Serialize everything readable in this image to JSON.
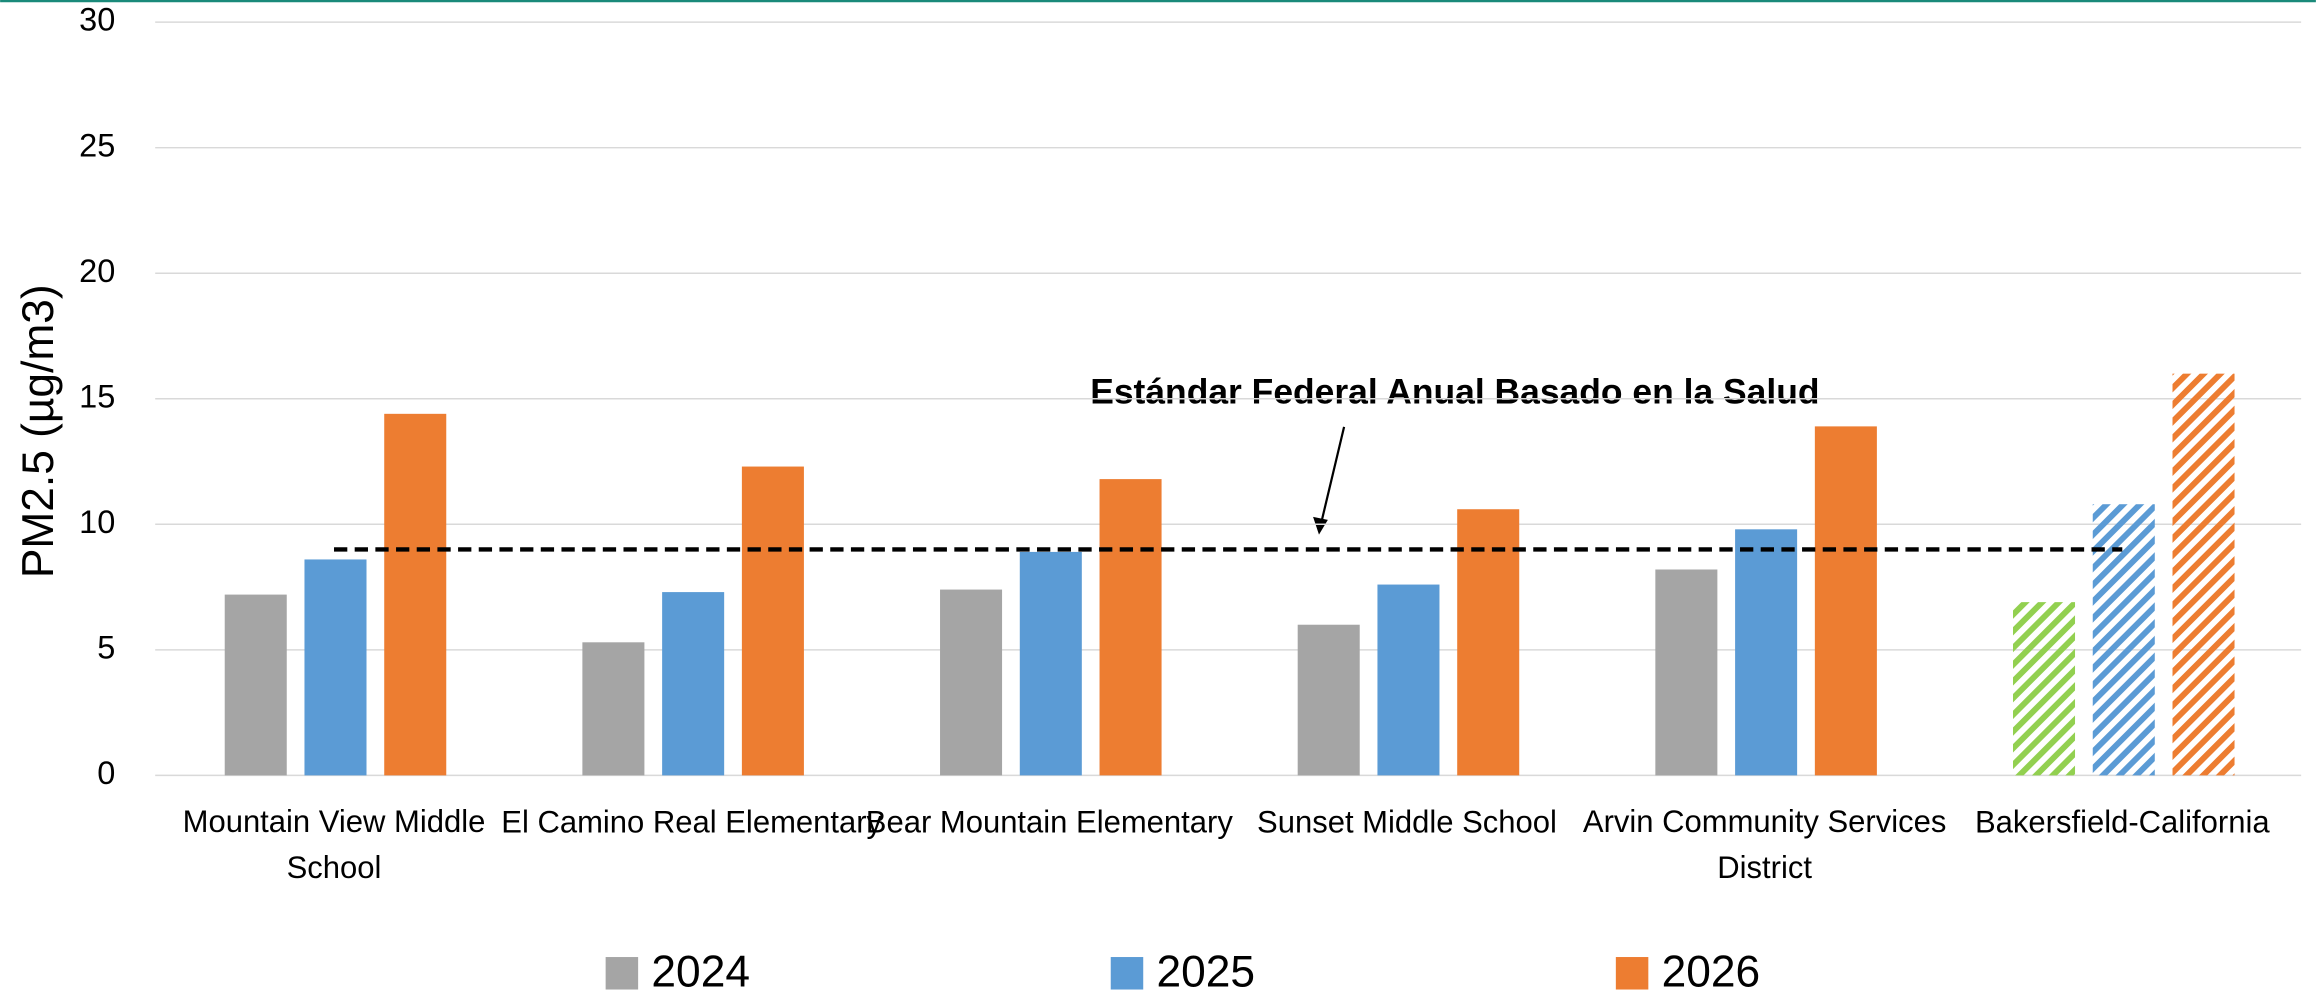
{
  "chart_data": {
    "type": "bar",
    "y_label": "PM2.5 (µg/m3)",
    "categories": [
      "Mountain View Middle School",
      "El Camino Real Elementary",
      "Bear Mountain Elementary",
      "Sunset Middle School",
      "Arvin Community Services District",
      "Bakersfield-California"
    ],
    "series": [
      {
        "name": "2024",
        "color": "#a5a5a5",
        "point_colors": [
          null,
          null,
          null,
          null,
          null,
          "#92d050"
        ],
        "values": [
          7.2,
          5.3,
          7.4,
          6.0,
          8.2,
          6.9
        ]
      },
      {
        "name": "2025",
        "color": "#5b9bd5",
        "values": [
          8.6,
          7.3,
          8.9,
          7.6,
          9.8,
          10.8
        ]
      },
      {
        "name": "2026",
        "color": "#ed7d31",
        "values": [
          14.4,
          12.3,
          11.8,
          10.6,
          13.9,
          16.0
        ]
      }
    ],
    "hatched": [
      false,
      false,
      false,
      false,
      false,
      true
    ],
    "reference_line": {
      "value": 9,
      "color": "#000000"
    },
    "annotation": "Estándar Federal Anual Basado en la Salud",
    "ylim": [
      0,
      30
    ],
    "yticks": [
      0,
      5,
      10,
      15,
      20,
      25,
      30
    ],
    "grid": true,
    "legend": "bottom"
  }
}
